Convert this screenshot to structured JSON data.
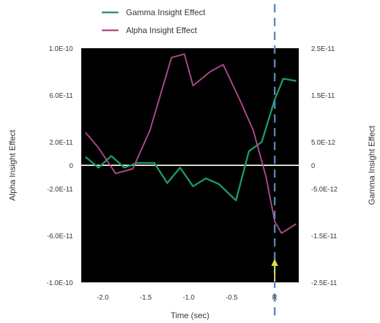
{
  "chart_data": {
    "type": "line",
    "title": "",
    "xlabel": "Time (sec)",
    "ylabel_left": "Alpha Insight Effect",
    "ylabel_right": "Gamma Insight Effect",
    "xlim": [
      -2.25,
      0.28
    ],
    "ylim_left": [
      -1e-10,
      1e-10
    ],
    "ylim_right": [
      -2.5e-11,
      2.5e-11
    ],
    "x_ticks": [
      -2.0,
      -1.5,
      -1.0,
      -0.5,
      0.0
    ],
    "x_tick_labels": [
      "-2.0",
      "-1.5",
      "-1.0",
      "-0.5",
      "R"
    ],
    "y_left_ticks": [
      1e-10,
      6e-11,
      2e-11,
      0,
      -2e-11,
      -6e-11,
      -1e-10
    ],
    "y_left_tick_labels": [
      "1.0E-10",
      "6.0E-11",
      "2.0E-11",
      "0",
      "-2.0E-11",
      "-6.0E-11",
      "-1.0E-10"
    ],
    "y_right_ticks": [
      2.5e-11,
      1.5e-11,
      5e-12,
      0,
      -5e-12,
      -1.5e-11,
      -2.5e-11
    ],
    "y_right_tick_labels": [
      "2.5E-11",
      "1.5E-11",
      "5.0E-12",
      "0",
      "-5.0E-12",
      "-1.5E-11",
      "-2.5E-11"
    ],
    "legend_position": "top",
    "background": "#000000",
    "zero_line_color": "#e8e4d8",
    "marker_line": {
      "x": 0.0,
      "color": "#5a86b8",
      "style": "dashed"
    },
    "arrow": {
      "x": 0.0,
      "color": "#e0e040"
    },
    "series": [
      {
        "name": "Gamma Insight Effect",
        "axis": "right",
        "color": "#1a9a64",
        "x": [
          -2.2,
          -2.05,
          -1.9,
          -1.75,
          -1.6,
          -1.4,
          -1.25,
          -1.1,
          -0.95,
          -0.8,
          -0.65,
          -0.45,
          -0.3,
          -0.15,
          0.0,
          0.1,
          0.25
        ],
        "values": [
          1.8e-12,
          -5e-13,
          2e-12,
          -5e-13,
          5e-13,
          5e-13,
          -3.8e-12,
          -5e-13,
          -4.5e-12,
          -2.8e-12,
          -4e-12,
          -7.5e-12,
          3e-12,
          5e-12,
          1.4e-11,
          1.85e-11,
          1.8e-11
        ]
      },
      {
        "name": "Alpha Insight Effect",
        "axis": "left",
        "color": "#b04a8a",
        "x": [
          -2.2,
          -2.05,
          -1.85,
          -1.65,
          -1.45,
          -1.2,
          -1.05,
          -0.95,
          -0.75,
          -0.6,
          -0.4,
          -0.25,
          -0.1,
          0.0,
          0.08,
          0.25
        ],
        "values": [
          2.8e-11,
          1.5e-11,
          -7e-12,
          -3e-12,
          3e-11,
          9.2e-11,
          9.5e-11,
          6.8e-11,
          8e-11,
          8.6e-11,
          5.5e-11,
          3e-11,
          -1e-11,
          -4.8e-11,
          -5.8e-11,
          -5e-11
        ]
      }
    ]
  }
}
